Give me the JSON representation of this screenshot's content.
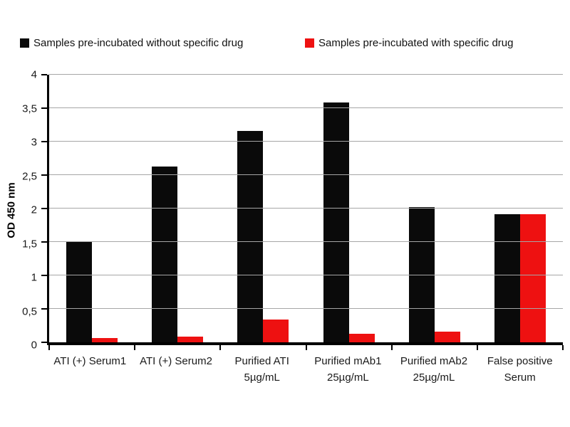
{
  "legend": {
    "items": [
      {
        "label": "Samples pre-incubated without specific drug",
        "color": "#0a0a0a"
      },
      {
        "label": "Samples pre-incubated with specific drug",
        "color": "#ee1111"
      }
    ]
  },
  "chart_data": {
    "type": "bar",
    "title": "",
    "xlabel": "",
    "ylabel": "OD 450 nm",
    "ylim": [
      0,
      4
    ],
    "y_tick_step": 0.5,
    "y_tick_labels": [
      "0",
      "0,5",
      "1",
      "1,5",
      "2",
      "2,5",
      "3",
      "3,5",
      "4"
    ],
    "grid": "horizontal-only",
    "legend_position": "top",
    "categories": [
      "ATI (+) Serum1",
      "ATI (+) Serum2",
      "Purified ATI 5µg/mL",
      "Purified mAb1 25µg/mL",
      "Purified mAb2 25µg/mL",
      "False positive Serum"
    ],
    "category_label_lines": [
      [
        "ATI (+) Serum1"
      ],
      [
        "ATI (+) Serum2"
      ],
      [
        "Purified ATI",
        "5µg/mL"
      ],
      [
        "Purified mAb1",
        "25µg/mL"
      ],
      [
        "Purified mAb2",
        "25µg/mL"
      ],
      [
        "False positive",
        "Serum"
      ]
    ],
    "series": [
      {
        "name": "Samples pre-incubated without specific drug",
        "color": "#0a0a0a",
        "values": [
          1.51,
          2.63,
          3.16,
          3.58,
          2.02,
          1.91
        ]
      },
      {
        "name": "Samples pre-incubated with specific drug",
        "color": "#ee1111",
        "values": [
          0.06,
          0.08,
          0.34,
          0.13,
          0.16,
          1.91
        ]
      }
    ],
    "colors": {
      "gridline": "#a6a6a6",
      "axis": "#000000",
      "text": "#1a1a1a"
    }
  }
}
